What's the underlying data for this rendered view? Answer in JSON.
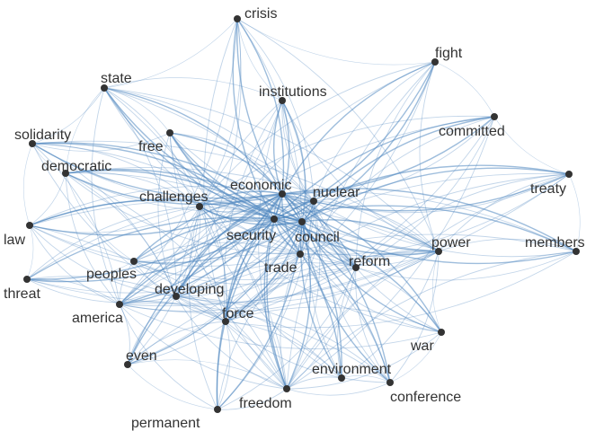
{
  "diagram": {
    "type": "network",
    "colors": {
      "edge": "#4f86c0",
      "node": "#333333",
      "label": "#333333",
      "background": "#ffffff"
    },
    "nodes": [
      {
        "id": "crisis",
        "label": "crisis"
      },
      {
        "id": "fight",
        "label": "fight"
      },
      {
        "id": "state",
        "label": "state"
      },
      {
        "id": "institutions",
        "label": "institutions"
      },
      {
        "id": "committed",
        "label": "committed"
      },
      {
        "id": "solidarity",
        "label": "solidarity"
      },
      {
        "id": "free",
        "label": "free"
      },
      {
        "id": "democratic",
        "label": "democratic"
      },
      {
        "id": "treaty",
        "label": "treaty"
      },
      {
        "id": "economic",
        "label": "economic"
      },
      {
        "id": "nuclear",
        "label": "nuclear"
      },
      {
        "id": "challenges",
        "label": "challenges"
      },
      {
        "id": "law",
        "label": "law"
      },
      {
        "id": "security",
        "label": "security"
      },
      {
        "id": "council",
        "label": "council"
      },
      {
        "id": "power",
        "label": "power"
      },
      {
        "id": "members",
        "label": "members"
      },
      {
        "id": "trade",
        "label": "trade"
      },
      {
        "id": "reform",
        "label": "reform"
      },
      {
        "id": "peoples",
        "label": "peoples"
      },
      {
        "id": "threat",
        "label": "threat"
      },
      {
        "id": "developing",
        "label": "developing"
      },
      {
        "id": "america",
        "label": "america"
      },
      {
        "id": "force",
        "label": "force"
      },
      {
        "id": "war",
        "label": "war"
      },
      {
        "id": "even",
        "label": "even"
      },
      {
        "id": "environment",
        "label": "environment"
      },
      {
        "id": "freedom",
        "label": "freedom"
      },
      {
        "id": "conference",
        "label": "conference"
      },
      {
        "id": "permanent",
        "label": "permanent"
      }
    ]
  }
}
